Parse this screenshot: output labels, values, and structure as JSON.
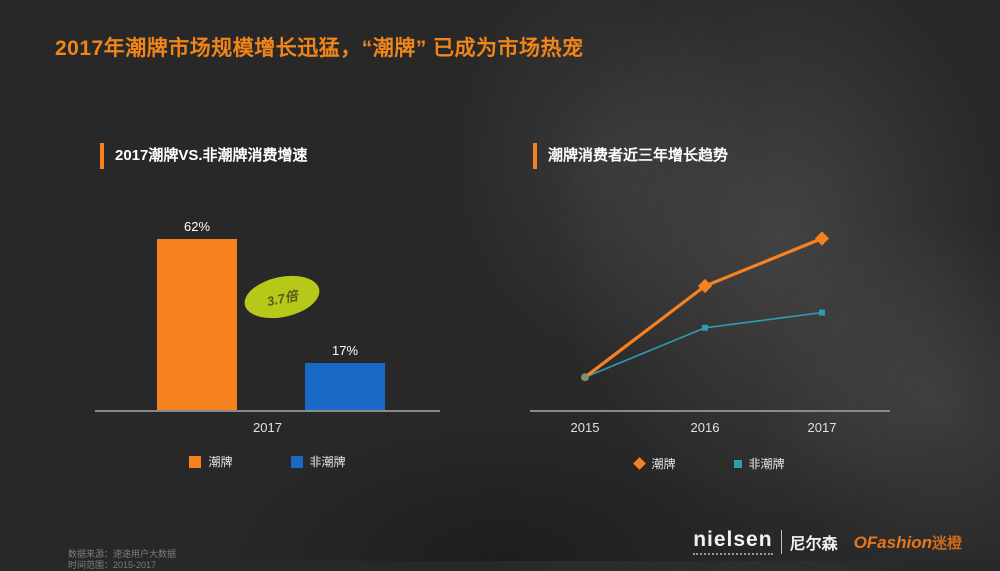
{
  "slide": {
    "title": "2017年潮牌市场规模增长迅猛，“潮牌” 已成为市场热宠"
  },
  "chart_data": [
    {
      "type": "bar",
      "title": "2017潮牌VS.非潮牌消费增速",
      "categories": [
        "潮牌",
        "非潮牌"
      ],
      "values": [
        62,
        17
      ],
      "value_labels": [
        "62%",
        "17%"
      ],
      "x_tick": "2017",
      "annotation": "3.7倍",
      "ylim": [
        0,
        76
      ],
      "colors": [
        "#F5821F",
        "#1B69C7"
      ],
      "legend": [
        {
          "label": "潮牌",
          "color": "#F5821F"
        },
        {
          "label": "非潮牌",
          "color": "#1B69C7"
        }
      ],
      "legend_position": "bottom",
      "grid": false
    },
    {
      "type": "line",
      "title": "潮牌消费者近三年增长趋势",
      "x": [
        "2015",
        "2016",
        "2017"
      ],
      "series": [
        {
          "name": "潮牌",
          "values": [
            12,
            60,
            85
          ],
          "color": "#F5821F"
        },
        {
          "name": "非潮牌",
          "values": [
            12,
            38,
            46
          ],
          "color": "#2E9BB5"
        }
      ],
      "ylim": [
        0,
        100
      ],
      "legend_position": "bottom",
      "grid": false,
      "note": "y values are estimated relative growth index; no y-axis labels shown"
    }
  ],
  "footer": {
    "source_line1": "数据来源：速途用户大数据",
    "source_line2": "时间范围：2015-2017",
    "nielsen_logo": "nielsen",
    "nielsen_cn": "尼尔森",
    "ofashion_logo": "OFashion",
    "ofashion_cn": "迷橙"
  }
}
